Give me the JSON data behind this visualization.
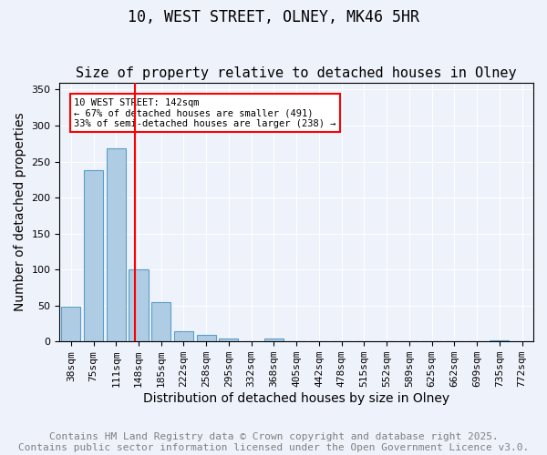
{
  "title": "10, WEST STREET, OLNEY, MK46 5HR",
  "subtitle": "Size of property relative to detached houses in Olney",
  "xlabel": "Distribution of detached houses by size in Olney",
  "ylabel": "Number of detached properties",
  "categories": [
    "38sqm",
    "75sqm",
    "111sqm",
    "148sqm",
    "185sqm",
    "222sqm",
    "258sqm",
    "295sqm",
    "332sqm",
    "368sqm",
    "405sqm",
    "442sqm",
    "478sqm",
    "515sqm",
    "552sqm",
    "589sqm",
    "625sqm",
    "662sqm",
    "699sqm",
    "735sqm",
    "772sqm"
  ],
  "values": [
    48,
    238,
    268,
    100,
    55,
    14,
    9,
    4,
    0,
    4,
    0,
    0,
    0,
    0,
    0,
    0,
    0,
    0,
    0,
    2,
    0
  ],
  "bar_color": "#aecce4",
  "bar_edge_color": "#5a9ec9",
  "vline_color": "red",
  "annotation_text": "10 WEST STREET: 142sqm\n← 67% of detached houses are smaller (491)\n33% of semi-detached houses are larger (238) →",
  "annotation_box_color": "white",
  "annotation_box_edge_color": "red",
  "ylim": [
    0,
    360
  ],
  "yticks": [
    0,
    50,
    100,
    150,
    200,
    250,
    300,
    350
  ],
  "footer_line1": "Contains HM Land Registry data © Crown copyright and database right 2025.",
  "footer_line2": "Contains public sector information licensed under the Open Government Licence v3.0.",
  "title_fontsize": 12,
  "subtitle_fontsize": 11,
  "axis_label_fontsize": 10,
  "tick_fontsize": 8,
  "footer_fontsize": 8,
  "background_color": "#eef2fb"
}
